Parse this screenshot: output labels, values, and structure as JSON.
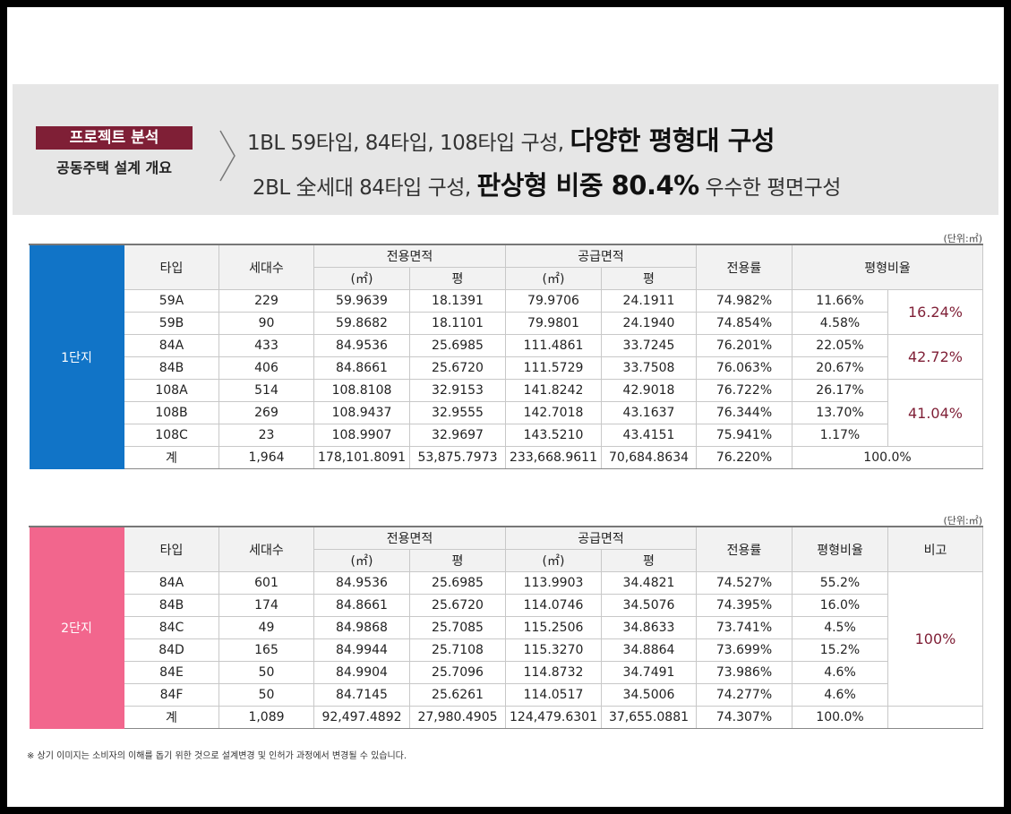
{
  "banner": {
    "badge": "프로젝트 분석",
    "subtitle": "공동주택 설계 개요",
    "line1_normal": "1BL 59타입, 84타입, 108타입 구성,",
    "line1_em": "다양한 평형대 구성",
    "line2_normal": "2BL 全세대 84타입 구성,",
    "line2_em": "판상형 비중 80.4%",
    "line2_tail": "우수한 평면구성"
  },
  "unit_label": "(단위:㎡)",
  "headers": {
    "type": "타입",
    "households": "세대수",
    "exclusive_area": "전용면적",
    "supply_area": "공급면적",
    "sqm": "(㎡)",
    "pyeong": "평",
    "ratio": "전용률",
    "size_ratio": "평형비율",
    "remarks": "비고"
  },
  "complex1": {
    "label": "1단지",
    "rows": [
      [
        "59A",
        "229",
        "59.9639",
        "18.1391",
        "79.9706",
        "24.1911",
        "74.982%",
        "11.66%"
      ],
      [
        "59B",
        "90",
        "59.8682",
        "18.1101",
        "79.9801",
        "24.1940",
        "74.854%",
        "4.58%"
      ],
      [
        "84A",
        "433",
        "84.9536",
        "25.6985",
        "111.4861",
        "33.7245",
        "76.201%",
        "22.05%"
      ],
      [
        "84B",
        "406",
        "84.8661",
        "25.6720",
        "111.5729",
        "33.7508",
        "76.063%",
        "20.67%"
      ],
      [
        "108A",
        "514",
        "108.8108",
        "32.9153",
        "141.8242",
        "42.9018",
        "76.722%",
        "26.17%"
      ],
      [
        "108B",
        "269",
        "108.9437",
        "32.9555",
        "142.7018",
        "43.1637",
        "76.344%",
        "13.70%"
      ],
      [
        "108C",
        "23",
        "108.9907",
        "32.9697",
        "143.5210",
        "43.4151",
        "75.941%",
        "1.17%"
      ]
    ],
    "groups": [
      "16.24%",
      "42.72%",
      "41.04%"
    ],
    "total": [
      "계",
      "1,964",
      "178,101.8091",
      "53,875.7973",
      "233,668.9611",
      "70,684.8634",
      "76.220%",
      "100.0%"
    ]
  },
  "complex2": {
    "label": "2단지",
    "rows": [
      [
        "84A",
        "601",
        "84.9536",
        "25.6985",
        "113.9903",
        "34.4821",
        "74.527%",
        "55.2%"
      ],
      [
        "84B",
        "174",
        "84.8661",
        "25.6720",
        "114.0746",
        "34.5076",
        "74.395%",
        "16.0%"
      ],
      [
        "84C",
        "49",
        "84.9868",
        "25.7085",
        "115.2506",
        "34.8633",
        "73.741%",
        "4.5%"
      ],
      [
        "84D",
        "165",
        "84.9944",
        "25.7108",
        "115.3270",
        "34.8864",
        "73.699%",
        "15.2%"
      ],
      [
        "84E",
        "50",
        "84.9904",
        "25.7096",
        "114.8732",
        "34.7491",
        "73.986%",
        "4.6%"
      ],
      [
        "84F",
        "50",
        "84.7145",
        "25.6261",
        "114.0517",
        "34.5006",
        "74.277%",
        "4.6%"
      ]
    ],
    "remark": "100%",
    "total": [
      "계",
      "1,089",
      "92,497.4892",
      "27,980.4905",
      "124,479.6301",
      "37,655.0881",
      "74.307%",
      "100.0%"
    ]
  },
  "footnote": "※ 상기 이미지는 소비자의 이해를 돕기 위한 것으로 설계변경 및 인허가 과정에서 변경될 수 있습니다."
}
